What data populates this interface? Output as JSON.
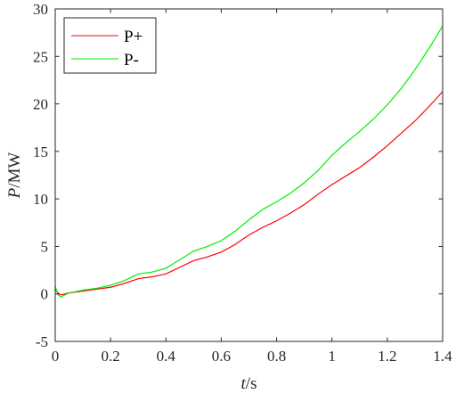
{
  "chart_data": {
    "type": "line",
    "x_label_var": "t",
    "x_label_unit": "/s",
    "y_label_var": "P",
    "y_label_unit": "/MW",
    "xlim": [
      0,
      1.4
    ],
    "ylim": [
      -5,
      30
    ],
    "xticks": [
      "0",
      "0.2",
      "0.4",
      "0.6",
      "0.8",
      "1",
      "1.2",
      "1.4"
    ],
    "yticks": [
      "-5",
      "0",
      "5",
      "10",
      "15",
      "20",
      "25",
      "30"
    ],
    "grid": false,
    "legend_position": "top-left",
    "series": [
      {
        "name": "P+",
        "color": "#ff0000",
        "points": [
          [
            0,
            0.5
          ],
          [
            0.01,
            0.1
          ],
          [
            0.02,
            -0.1
          ],
          [
            0.05,
            0.1
          ],
          [
            0.1,
            0.3
          ],
          [
            0.15,
            0.5
          ],
          [
            0.2,
            0.7
          ],
          [
            0.25,
            1.1
          ],
          [
            0.3,
            1.6
          ],
          [
            0.35,
            1.8
          ],
          [
            0.4,
            2.1
          ],
          [
            0.45,
            2.8
          ],
          [
            0.5,
            3.5
          ],
          [
            0.55,
            3.9
          ],
          [
            0.6,
            4.4
          ],
          [
            0.65,
            5.2
          ],
          [
            0.7,
            6.2
          ],
          [
            0.75,
            7.0
          ],
          [
            0.8,
            7.7
          ],
          [
            0.85,
            8.5
          ],
          [
            0.9,
            9.4
          ],
          [
            0.95,
            10.5
          ],
          [
            1.0,
            11.5
          ],
          [
            1.05,
            12.4
          ],
          [
            1.1,
            13.3
          ],
          [
            1.15,
            14.4
          ],
          [
            1.2,
            15.6
          ],
          [
            1.25,
            16.9
          ],
          [
            1.3,
            18.2
          ],
          [
            1.35,
            19.7
          ],
          [
            1.4,
            21.3
          ]
        ]
      },
      {
        "name": "P-",
        "color": "#00ee00",
        "points": [
          [
            0,
            0.8
          ],
          [
            0.01,
            -0.1
          ],
          [
            0.02,
            -0.3
          ],
          [
            0.05,
            0.1
          ],
          [
            0.1,
            0.4
          ],
          [
            0.15,
            0.6
          ],
          [
            0.2,
            0.9
          ],
          [
            0.25,
            1.4
          ],
          [
            0.3,
            2.1
          ],
          [
            0.35,
            2.3
          ],
          [
            0.4,
            2.7
          ],
          [
            0.45,
            3.6
          ],
          [
            0.5,
            4.5
          ],
          [
            0.55,
            5.0
          ],
          [
            0.6,
            5.6
          ],
          [
            0.65,
            6.6
          ],
          [
            0.7,
            7.8
          ],
          [
            0.75,
            8.9
          ],
          [
            0.8,
            9.7
          ],
          [
            0.85,
            10.6
          ],
          [
            0.9,
            11.7
          ],
          [
            0.95,
            13.0
          ],
          [
            1.0,
            14.6
          ],
          [
            1.05,
            15.9
          ],
          [
            1.1,
            17.1
          ],
          [
            1.15,
            18.4
          ],
          [
            1.2,
            19.9
          ],
          [
            1.25,
            21.6
          ],
          [
            1.3,
            23.6
          ],
          [
            1.35,
            25.8
          ],
          [
            1.4,
            28.2
          ]
        ]
      }
    ]
  }
}
